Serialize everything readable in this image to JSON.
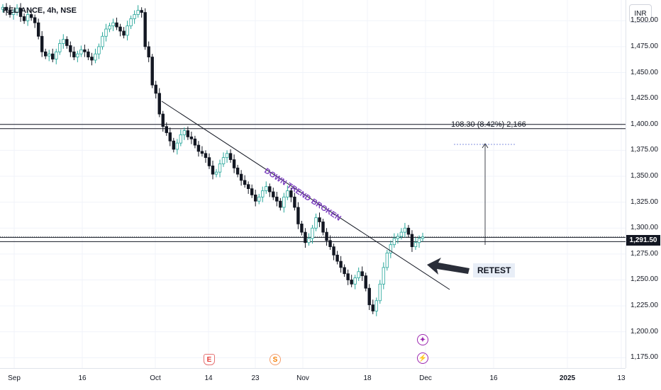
{
  "header": {
    "symbol_title": "RELIANCE, 4h, NSE",
    "currency": "INR"
  },
  "price_axis": {
    "ticks": [
      "1,500.00",
      "1,475.00",
      "1,450.00",
      "1,425.00",
      "1,400.00",
      "1,375.00",
      "1,350.00",
      "1,325.00",
      "1,300.00",
      "1,275.00",
      "1,250.00",
      "1,225.00",
      "1,200.00",
      "1,175.00"
    ],
    "current_price": "1,291.50"
  },
  "time_axis": {
    "ticks": [
      {
        "label": "Sep",
        "bold": false
      },
      {
        "label": "16",
        "bold": false
      },
      {
        "label": "Oct",
        "bold": false
      },
      {
        "label": "14",
        "bold": false
      },
      {
        "label": "23",
        "bold": false
      },
      {
        "label": "Nov",
        "bold": false
      },
      {
        "label": "18",
        "bold": false
      },
      {
        "label": "Dec",
        "bold": false
      },
      {
        "label": "16",
        "bold": false
      },
      {
        "label": "2025",
        "bold": true
      },
      {
        "label": "13",
        "bold": false
      }
    ]
  },
  "annotations": {
    "measure": "108.30 (8.42%) 2,166",
    "trendline_text": "DOWN TREND BROKEN",
    "retest": "RETEST"
  },
  "events": {
    "earnings": "E",
    "split": "S",
    "dividend_1": "✦",
    "dividend_2": "⚡"
  },
  "colors": {
    "up": "#26a69a",
    "down": "#131722",
    "trend_text": "#7b3fbf",
    "price_badge": "#131722"
  },
  "chart_data": {
    "type": "candlestick",
    "title": "RELIANCE, 4h, NSE",
    "currency": "INR",
    "x": [
      "Sep",
      "16",
      "Oct",
      "14",
      "23",
      "Nov",
      "18",
      "Dec",
      "16",
      "2025",
      "13"
    ],
    "ylim": [
      1165,
      1520
    ],
    "closes": [
      1513,
      1510,
      1506,
      1508,
      1512,
      1504,
      1500,
      1506,
      1503,
      1498,
      1485,
      1470,
      1466,
      1468,
      1463,
      1470,
      1478,
      1482,
      1476,
      1470,
      1465,
      1468,
      1472,
      1470,
      1465,
      1462,
      1468,
      1475,
      1485,
      1492,
      1495,
      1498,
      1494,
      1490,
      1486,
      1495,
      1502,
      1506,
      1510,
      1508,
      1475,
      1465,
      1438,
      1430,
      1410,
      1398,
      1392,
      1384,
      1376,
      1382,
      1390,
      1394,
      1388,
      1386,
      1380,
      1374,
      1372,
      1368,
      1360,
      1352,
      1354,
      1362,
      1368,
      1372,
      1366,
      1358,
      1352,
      1346,
      1342,
      1338,
      1332,
      1326,
      1330,
      1336,
      1340,
      1335,
      1330,
      1326,
      1320,
      1330,
      1336,
      1330,
      1320,
      1304,
      1296,
      1286,
      1290,
      1300,
      1310,
      1306,
      1296,
      1288,
      1282,
      1274,
      1268,
      1262,
      1256,
      1250,
      1246,
      1252,
      1258,
      1254,
      1242,
      1226,
      1220,
      1230,
      1246,
      1262,
      1276,
      1284,
      1290,
      1292,
      1296,
      1300,
      1294,
      1282,
      1286,
      1290,
      1291.5
    ],
    "horizontal_levels": [
      1398,
      1289
    ],
    "measure": {
      "from": 1289,
      "to": 1398,
      "label": "108.30 (8.42%) 2,166"
    }
  }
}
